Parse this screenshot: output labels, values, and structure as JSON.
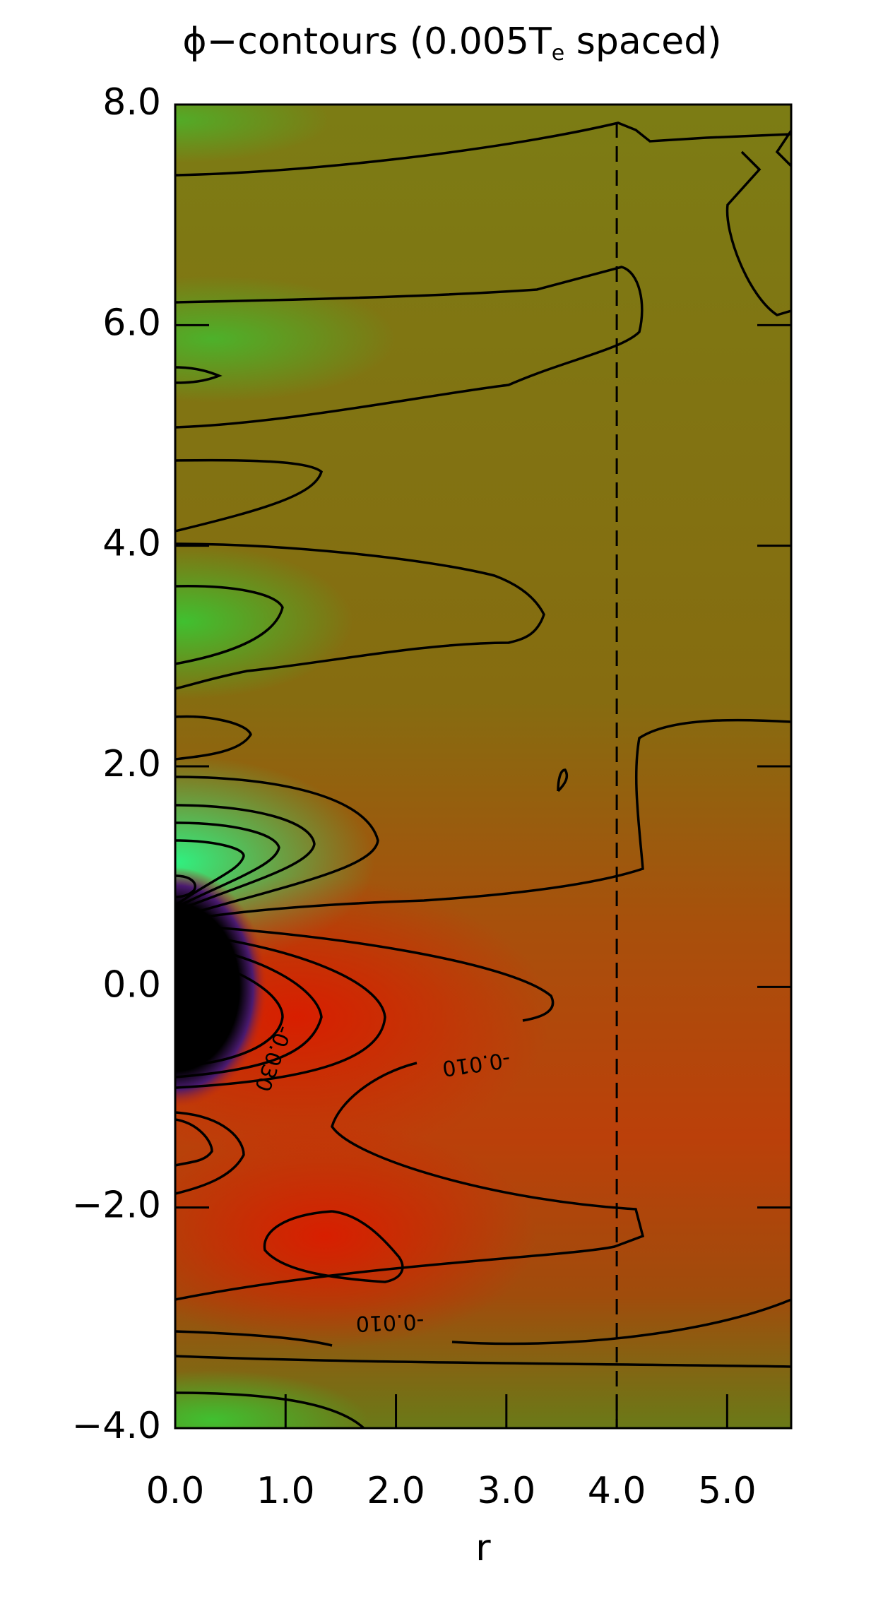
{
  "chart_data": {
    "type": "contour",
    "title": [
      "ϕ−contours (0.005T",
      "e",
      " spaced)"
    ],
    "x_label": "r",
    "xlim": [
      0,
      5.58
    ],
    "ylim": [
      -4,
      8
    ],
    "xticks": [
      {
        "value": 0,
        "label": "0.0"
      },
      {
        "value": 1,
        "label": "1.0"
      },
      {
        "value": 2,
        "label": "2.0"
      },
      {
        "value": 3,
        "label": "3.0"
      },
      {
        "value": 4,
        "label": "4.0"
      },
      {
        "value": 5,
        "label": "5.0"
      }
    ],
    "yticks": [
      {
        "value": -4,
        "label": "−4.0"
      },
      {
        "value": -2,
        "label": "−2.0"
      },
      {
        "value": 0,
        "label": "0.0"
      },
      {
        "value": 2,
        "label": "2.0"
      },
      {
        "value": 4,
        "label": "4.0"
      },
      {
        "value": 6,
        "label": "6.0"
      },
      {
        "value": 8,
        "label": "8.0"
      }
    ],
    "reference_line_x": 4,
    "contour_labels": [
      "-0.010",
      "-0.010",
      "-0.030"
    ]
  }
}
